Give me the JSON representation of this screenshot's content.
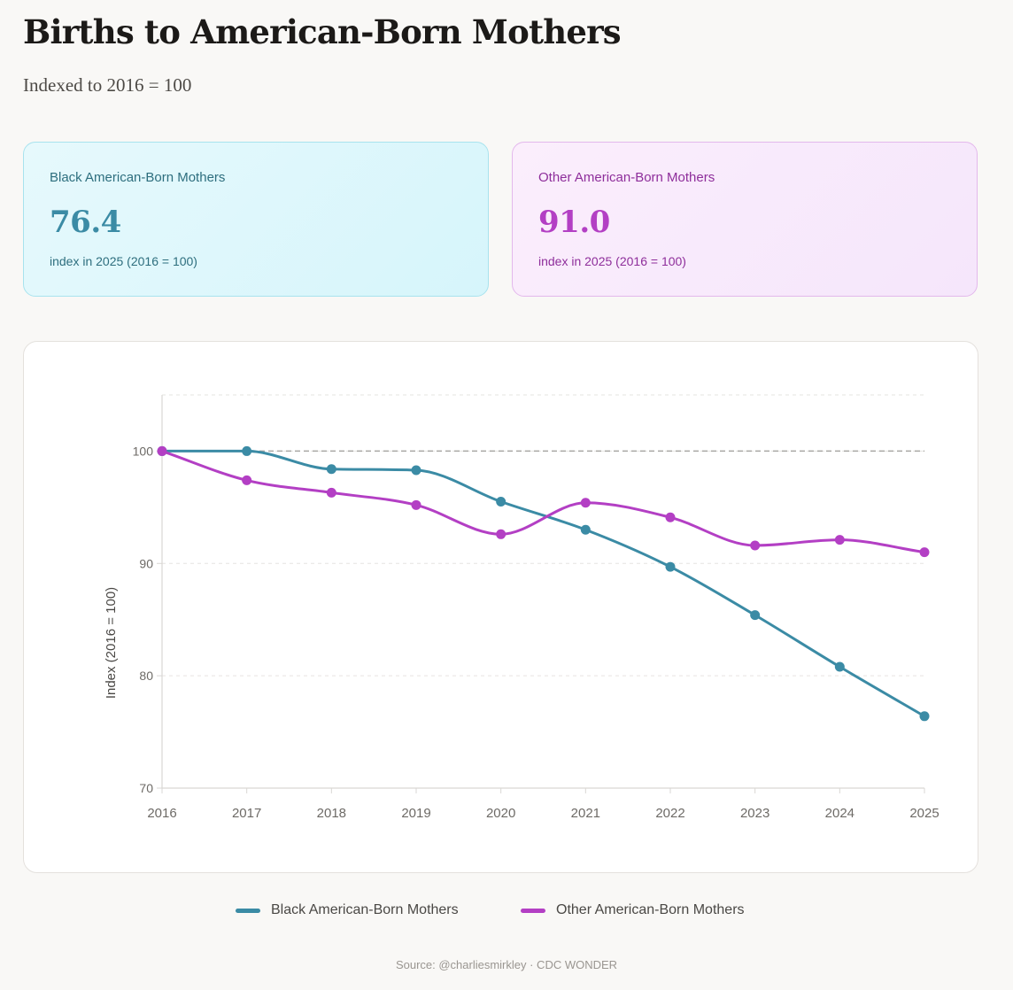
{
  "header": {
    "title": "Births to American-Born Mothers",
    "subtitle": "Indexed to 2016 = 100"
  },
  "cards": {
    "black": {
      "label": "Black American-Born Mothers",
      "value": "76.4",
      "note": "index in 2025 (2016 = 100)",
      "accent_color": "#3b8ba5"
    },
    "other": {
      "label": "Other American-Born Mothers",
      "value": "91.0",
      "note": "index in 2025 (2016 = 100)",
      "accent_color": "#b33fc4"
    }
  },
  "chart_data": {
    "type": "line",
    "title": "Births to American-Born Mothers",
    "subtitle": "Indexed to 2016 = 100",
    "xlabel": "",
    "ylabel": "Index (2016 = 100)",
    "x": [
      "2016",
      "2017",
      "2018",
      "2019",
      "2020",
      "2021",
      "2022",
      "2023",
      "2024",
      "2025"
    ],
    "ylim": [
      70,
      105
    ],
    "yticks": [
      70,
      80,
      90,
      100
    ],
    "reference_line": 100,
    "grid": true,
    "legend": "bottom-center",
    "series": [
      {
        "name": "Black American-Born Mothers",
        "color": "#3b8ba5",
        "values": [
          100,
          100,
          98.4,
          98.3,
          95.5,
          93.0,
          89.7,
          85.4,
          80.8,
          76.4
        ]
      },
      {
        "name": "Other American-Born Mothers",
        "color": "#b33fc4",
        "values": [
          100,
          97.4,
          96.3,
          95.2,
          92.6,
          95.4,
          94.1,
          91.6,
          92.1,
          91.0
        ]
      }
    ]
  },
  "source": "Source: @charliesmirkley · CDC WONDER"
}
